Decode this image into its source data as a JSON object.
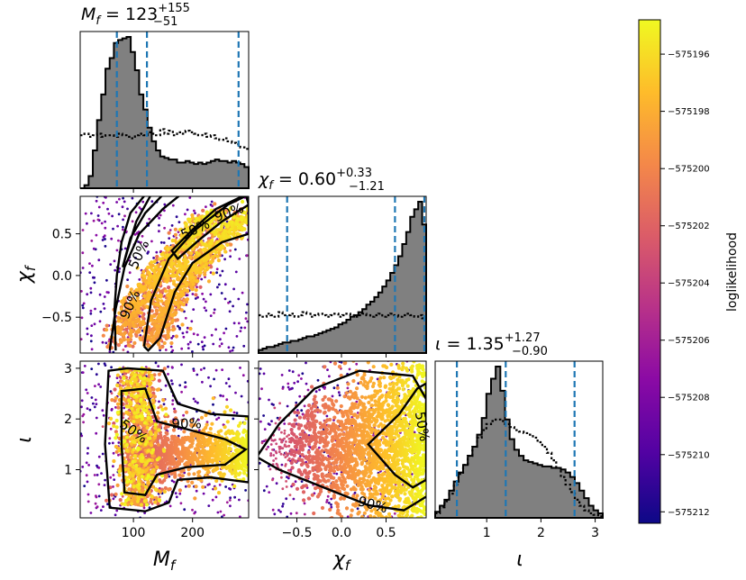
{
  "colors": {
    "hist_fill": "#808080",
    "hist_edge": "#000000",
    "prior_line": "#000000",
    "quantile_line": "#1f77b4",
    "colormap": [
      "#0d0887",
      "#5302a3",
      "#8b0aa5",
      "#b83289",
      "#db5c68",
      "#f48849",
      "#febc2a",
      "#f0f921"
    ]
  },
  "chart_data": {
    "type": "corner",
    "parameters": [
      {
        "symbol": "M_f",
        "label": "M",
        "sub": "f",
        "range": [
          10,
          295
        ],
        "ticks": [
          100,
          200
        ],
        "tick_labels": [
          "100",
          "200"
        ]
      },
      {
        "symbol": "chi_f",
        "label": "χ",
        "sub": "f",
        "range": [
          -0.93,
          0.95
        ],
        "ticks": [
          -0.5,
          0.0,
          0.5
        ],
        "tick_labels": [
          "−0.5",
          "0.0",
          "0.5"
        ]
      },
      {
        "symbol": "iota",
        "label": "ι",
        "sub": "",
        "range": [
          0.05,
          3.14
        ],
        "ticks": [
          1,
          2,
          3
        ],
        "tick_labels": [
          "1",
          "2",
          "3"
        ]
      }
    ],
    "titles": [
      {
        "lhs": "M",
        "sub": "f",
        "value": "123",
        "plus": "+155",
        "minus": "−51"
      },
      {
        "lhs": "χ",
        "sub": "f",
        "value": "0.60",
        "plus": "+0.33",
        "minus": "−1.21"
      },
      {
        "lhs": "ι",
        "sub": "",
        "value": "1.35",
        "plus": "+1.27",
        "minus": "−0.90"
      }
    ],
    "quantiles": [
      [
        72,
        123,
        278
      ],
      [
        -0.61,
        0.6,
        0.93
      ],
      [
        0.45,
        1.35,
        2.62
      ]
    ],
    "row_tick_labels": [
      {
        "param": 1,
        "ticks": [
          0.5,
          0.0,
          -0.5
        ],
        "labels": [
          "0.5",
          "0.0",
          "−0.5"
        ]
      },
      {
        "param": 2,
        "ticks": [
          3,
          2,
          1
        ],
        "labels": [
          "3",
          "2",
          "1"
        ]
      }
    ],
    "marginals": [
      {
        "param": 0,
        "posterior": [
          0,
          0.02,
          0.08,
          0.25,
          0.45,
          0.62,
          0.79,
          0.86,
          0.96,
          0.98,
          0.99,
          1.0,
          0.9,
          0.78,
          0.62,
          0.52,
          0.4,
          0.31,
          0.25,
          0.21,
          0.2,
          0.19,
          0.19,
          0.17,
          0.17,
          0.18,
          0.17,
          0.16,
          0.17,
          0.16,
          0.17,
          0.18,
          0.19,
          0.18,
          0.18,
          0.17,
          0.18,
          0.17,
          0.16,
          0.14
        ],
        "prior": [
          0.35,
          0.36,
          0.34,
          0.35,
          0.36,
          0.34,
          0.35,
          0.35,
          0.34,
          0.36,
          0.35,
          0.34,
          0.33,
          0.35,
          0.36,
          0.35,
          0.37,
          0.36,
          0.35,
          0.39,
          0.36,
          0.38,
          0.35,
          0.37,
          0.36,
          0.38,
          0.37,
          0.36,
          0.35,
          0.36,
          0.34,
          0.35,
          0.33,
          0.32,
          0.33,
          0.31,
          0.3,
          0.29,
          0.27,
          0.26
        ]
      },
      {
        "param": 1,
        "posterior": [
          0.02,
          0.03,
          0.04,
          0.04,
          0.05,
          0.06,
          0.07,
          0.07,
          0.08,
          0.08,
          0.09,
          0.1,
          0.11,
          0.11,
          0.12,
          0.13,
          0.14,
          0.15,
          0.16,
          0.17,
          0.19,
          0.2,
          0.22,
          0.24,
          0.25,
          0.27,
          0.29,
          0.32,
          0.34,
          0.37,
          0.4,
          0.44,
          0.48,
          0.53,
          0.58,
          0.64,
          0.72,
          0.8,
          0.9,
          0.95,
          1.0,
          0.85
        ],
        "prior": [
          0.25,
          0.24,
          0.26,
          0.25,
          0.24,
          0.27,
          0.25,
          0.25,
          0.26,
          0.24,
          0.25,
          0.27,
          0.26,
          0.24,
          0.25,
          0.26,
          0.25,
          0.24,
          0.25,
          0.26,
          0.24,
          0.25,
          0.26,
          0.25,
          0.24,
          0.25,
          0.26,
          0.25,
          0.24,
          0.25,
          0.26,
          0.24,
          0.25,
          0.26,
          0.25,
          0.24,
          0.25,
          0.26,
          0.25,
          0.24,
          0.25,
          0.23
        ]
      },
      {
        "param": 2,
        "posterior": [
          0.04,
          0.08,
          0.12,
          0.18,
          0.24,
          0.3,
          0.35,
          0.41,
          0.47,
          0.55,
          0.66,
          0.82,
          0.92,
          1.0,
          0.84,
          0.65,
          0.52,
          0.45,
          0.41,
          0.38,
          0.37,
          0.36,
          0.35,
          0.34,
          0.34,
          0.33,
          0.33,
          0.32,
          0.3,
          0.27,
          0.23,
          0.18,
          0.13,
          0.08,
          0.05,
          0.03
        ],
        "prior": [
          0.03,
          0.07,
          0.11,
          0.16,
          0.22,
          0.29,
          0.35,
          0.41,
          0.47,
          0.53,
          0.58,
          0.62,
          0.64,
          0.65,
          0.64,
          0.62,
          0.6,
          0.58,
          0.57,
          0.56,
          0.55,
          0.53,
          0.5,
          0.47,
          0.43,
          0.38,
          0.33,
          0.27,
          0.22,
          0.17,
          0.12,
          0.08,
          0.05,
          0.03,
          0.02,
          0.01
        ]
      }
    ],
    "contour_labels": [
      {
        "panel": "chi_f_vs_M_f",
        "labels": [
          "50%",
          "90%",
          "50%",
          "90%"
        ]
      },
      {
        "panel": "iota_vs_M_f",
        "labels": [
          "50%",
          "90%"
        ]
      },
      {
        "panel": "iota_vs_chi_f",
        "labels": [
          "50%",
          "90%"
        ]
      }
    ],
    "colorbar": {
      "label": "loglikelihood",
      "range": [
        -575212.4,
        -575194.8
      ],
      "ticks": [
        -575196,
        -575198,
        -575200,
        -575202,
        -575204,
        -575206,
        -575208,
        -575210,
        -575212
      ],
      "tick_labels": [
        "−575196",
        "−575198",
        "−575200",
        "−575202",
        "−575204",
        "−575206",
        "−575208",
        "−575210",
        "−575212"
      ]
    }
  }
}
